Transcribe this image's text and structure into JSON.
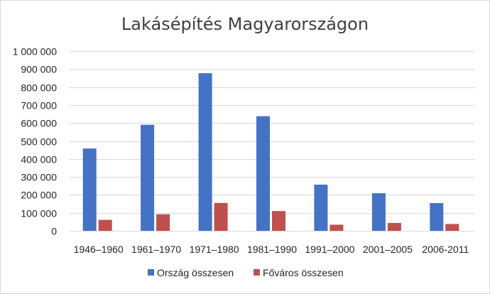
{
  "chart_data": {
    "type": "bar",
    "title": "Lakásépítés Magyarországon",
    "xlabel": "",
    "ylabel": "",
    "categories": [
      "1946–1960",
      "1961–1970",
      "1971–1980",
      "1981–1990",
      "1991–2000",
      "2001–2005",
      "2006-2011"
    ],
    "series": [
      {
        "name": "Ország összesen",
        "color": "#4472c4",
        "values": [
          458000,
          590000,
          877000,
          638000,
          257000,
          209000,
          154000
        ]
      },
      {
        "name": "Főváros összesen",
        "color": "#c0504d",
        "values": [
          61000,
          92000,
          155000,
          110000,
          34000,
          44000,
          38000
        ]
      }
    ],
    "ylim": [
      0,
      1000000
    ],
    "yticks": [
      0,
      100000,
      200000,
      300000,
      400000,
      500000,
      600000,
      700000,
      800000,
      900000,
      1000000
    ],
    "ytick_labels": [
      "0",
      "100 000",
      "200 000",
      "300 000",
      "400 000",
      "500 000",
      "600 000",
      "700 000",
      "800 000",
      "900 000",
      "1 000 000"
    ],
    "grid": true,
    "legend_position": "bottom"
  }
}
